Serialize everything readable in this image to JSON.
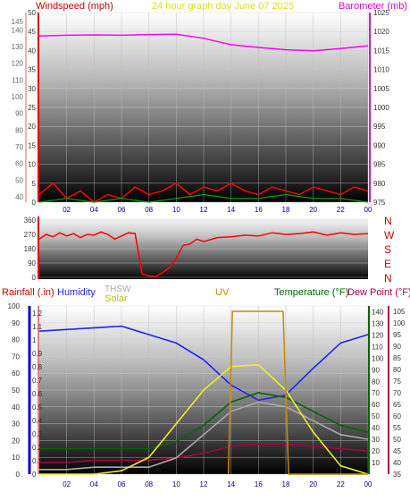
{
  "header": {
    "left_title": "Windspeed (mph)",
    "center_title": "24 hour graph day   June 07 2025",
    "right_title": "Barometer (mb)"
  },
  "colors": {
    "wind": "#ff0000",
    "gust": "#00aa00",
    "barometer": "#ff00ff",
    "wind_avg": "#0000ff",
    "rain": "#0000cc",
    "humidity": "#2222ff",
    "thsw": "#aaaaaa",
    "solar": "#eeee22",
    "uv": "#cc8800",
    "temperature": "#006600",
    "dew_point": "#aa0044",
    "header_red": "#cc0000",
    "x_axis_blue": "#000088"
  },
  "chart_data": [
    {
      "type": "line",
      "panel": "wind_barometer",
      "title": "24 hour graph day   June 07 2025",
      "xlabel": "",
      "ylabel": "Windspeed (mph)",
      "ylabel_right": "Barometer (mb)",
      "x_ticks": [
        "02",
        "04",
        "06",
        "08",
        "10",
        "12",
        "14",
        "16",
        "18",
        "20",
        "22",
        "00"
      ],
      "y_left": {
        "ticks": [
          0,
          5,
          10,
          15,
          20,
          25,
          30,
          35,
          40,
          45,
          50
        ],
        "ylim": [
          0,
          50
        ]
      },
      "y_left_kmh": {
        "ticks": [
          40,
          50,
          60,
          70,
          80,
          90,
          100,
          110,
          120,
          130,
          140,
          145
        ]
      },
      "y_right": {
        "ticks": [
          975,
          980,
          985,
          990,
          995,
          1000,
          1005,
          1010,
          1015,
          1020,
          1025
        ],
        "ylim": [
          975,
          1025
        ]
      },
      "grid": true,
      "series": [
        {
          "name": "Barometer",
          "axis": "right",
          "x": [
            0,
            2,
            4,
            6,
            8,
            10,
            12,
            14,
            16,
            18,
            20,
            22,
            24
          ],
          "values": [
            1018.8,
            1019.0,
            1019.1,
            1019.0,
            1019.2,
            1019.3,
            1018.2,
            1016.5,
            1015.8,
            1015.2,
            1014.9,
            1015.5,
            1016.2
          ]
        },
        {
          "name": "Wind",
          "axis": "left",
          "x": [
            0,
            1,
            2,
            3,
            4,
            5,
            6,
            7,
            8,
            9,
            10,
            11,
            12,
            13,
            14,
            15,
            16,
            17,
            18,
            19,
            20,
            21,
            22,
            23,
            24
          ],
          "values": [
            2,
            5,
            1,
            3,
            0,
            2,
            1,
            4,
            2,
            3,
            5,
            2,
            4,
            3,
            5,
            3,
            2,
            4,
            3,
            2,
            4,
            3,
            2,
            4,
            3
          ]
        },
        {
          "name": "Gust",
          "axis": "left",
          "x": [
            0,
            2,
            4,
            6,
            8,
            10,
            12,
            14,
            16,
            18,
            20,
            22,
            24
          ],
          "values": [
            0,
            1,
            0,
            1,
            0,
            1,
            2,
            1,
            1,
            2,
            1,
            1,
            0
          ]
        }
      ]
    },
    {
      "type": "line",
      "panel": "wind_direction",
      "xlabel": "",
      "ylabel": "",
      "y_ticks": [
        0,
        90,
        180,
        270,
        360
      ],
      "ylim": [
        0,
        360
      ],
      "compass_labels": [
        "N",
        "W",
        "S",
        "E",
        "N"
      ],
      "series": [
        {
          "name": "Wind Direction",
          "x": [
            0,
            0.5,
            1,
            1.5,
            2,
            2.5,
            3,
            3.5,
            4,
            4.5,
            5,
            5.5,
            6,
            6.5,
            7,
            7.5,
            8,
            8.5,
            9,
            9.5,
            10,
            10.5,
            11,
            11.5,
            12,
            13,
            14,
            15,
            16,
            17,
            18,
            19,
            20,
            21,
            22,
            23,
            24
          ],
          "values": [
            240,
            270,
            255,
            280,
            260,
            275,
            250,
            270,
            265,
            285,
            270,
            240,
            260,
            280,
            275,
            20,
            10,
            5,
            30,
            60,
            120,
            200,
            210,
            240,
            225,
            250,
            255,
            265,
            260,
            280,
            270,
            275,
            285,
            265,
            280,
            270,
            275
          ]
        }
      ]
    },
    {
      "type": "line",
      "panel": "weather",
      "xlabel": "",
      "legend": [
        "Rainfall (.in)",
        "Humidity",
        "THSW",
        "Solar",
        "UV",
        "Temperature (°F)",
        "Dew Point (°F)"
      ],
      "x_ticks": [
        "02",
        "04",
        "06",
        "08",
        "10",
        "12",
        "14",
        "16",
        "18",
        "20",
        "22",
        "00"
      ],
      "y_left_humidity": {
        "ticks": [
          0,
          10,
          20,
          30,
          40,
          50,
          60,
          70,
          80,
          90,
          100
        ],
        "ylim": [
          0,
          100
        ]
      },
      "y_left_rain": {
        "ticks": [
          0,
          0.1,
          0.2,
          0.3,
          0.4,
          0.5,
          0.6,
          0.7,
          0.8,
          0.9,
          1,
          1.1,
          1.2
        ],
        "ylim": [
          0,
          1.2
        ]
      },
      "y_right_uv": {
        "ticks": [
          10,
          20,
          30,
          40,
          50,
          60,
          70,
          80,
          90,
          100,
          110,
          120,
          130,
          140
        ]
      },
      "y_right_temp": {
        "ticks": [
          35,
          40,
          45,
          50,
          55,
          60,
          65,
          70,
          75,
          80,
          85,
          90,
          95,
          100,
          105
        ],
        "ylim": [
          35,
          105
        ]
      },
      "grid": true,
      "series": [
        {
          "name": "Humidity",
          "axis": "humidity",
          "x": [
            0,
            2,
            4,
            6,
            8,
            10,
            12,
            14,
            16,
            18,
            20,
            22,
            24
          ],
          "values": [
            85,
            86,
            87,
            88,
            83,
            78,
            68,
            53,
            44,
            47,
            63,
            78,
            83
          ]
        },
        {
          "name": "Temperature",
          "axis": "temp",
          "x": [
            0,
            2,
            4,
            6,
            8,
            10,
            12,
            14,
            16,
            18,
            20,
            22,
            24
          ],
          "values": [
            46,
            46,
            46,
            46,
            46,
            49,
            56,
            66,
            70,
            68,
            62,
            56,
            53
          ]
        },
        {
          "name": "Dew Point",
          "axis": "temp",
          "x": [
            0,
            2,
            4,
            6,
            8,
            10,
            12,
            14,
            16,
            18,
            20,
            22,
            24
          ],
          "values": [
            40,
            40,
            41,
            41,
            41,
            42,
            44,
            47,
            48,
            48,
            47,
            46,
            45
          ]
        },
        {
          "name": "THSW",
          "axis": "temp",
          "x": [
            0,
            2,
            4,
            6,
            8,
            10,
            12,
            14,
            16,
            18,
            20,
            22,
            24
          ],
          "values": [
            37,
            37,
            38,
            38,
            38,
            42,
            52,
            62,
            66,
            64,
            58,
            52,
            50
          ]
        },
        {
          "name": "Solar",
          "axis": "humidity",
          "x": [
            0,
            2,
            4,
            6,
            8,
            10,
            12,
            14,
            16,
            18,
            20,
            22,
            24
          ],
          "values": [
            0,
            0,
            0,
            2,
            10,
            30,
            50,
            64,
            65,
            50,
            25,
            5,
            0
          ]
        },
        {
          "name": "UV",
          "axis": "temp",
          "x": [
            13.8,
            14.1,
            17.8,
            18.2,
            24
          ],
          "values": [
            35,
            105,
            105,
            35,
            35
          ]
        }
      ]
    }
  ]
}
